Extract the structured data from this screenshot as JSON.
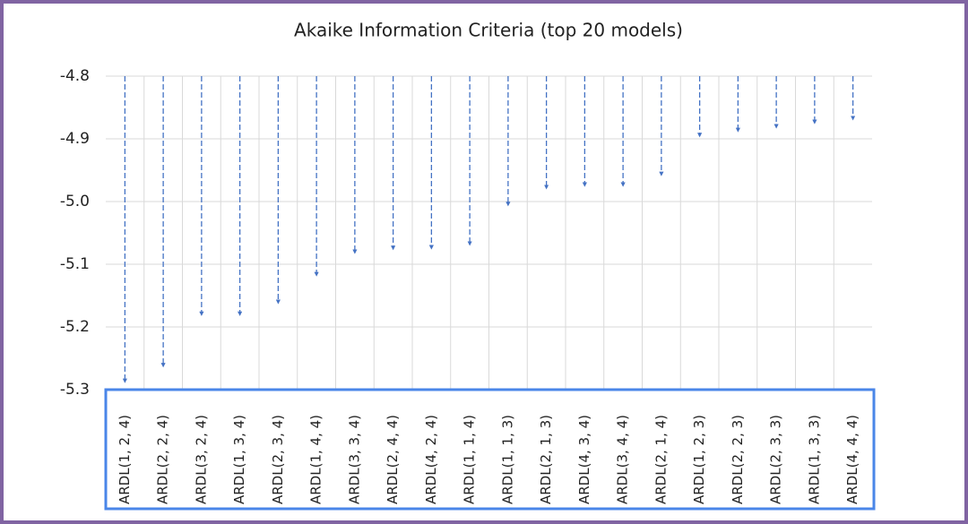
{
  "chart_data": {
    "type": "arrow",
    "title": "Akaike Information Criteria (top 20 models)",
    "categories": [
      "ARDL(1, 2, 4)",
      "ARDL(2, 2, 4)",
      "ARDL(3, 2, 4)",
      "ARDL(1, 3, 4)",
      "ARDL(2, 3, 4)",
      "ARDL(1, 4, 4)",
      "ARDL(3, 3, 4)",
      "ARDL(2, 4, 4)",
      "ARDL(4, 2, 4)",
      "ARDL(1, 1, 4)",
      "ARDL(1, 1, 3)",
      "ARDL(2, 1, 3)",
      "ARDL(4, 3, 4)",
      "ARDL(3, 4, 4)",
      "ARDL(2, 1, 4)",
      "ARDL(1, 2, 3)",
      "ARDL(2, 2, 3)",
      "ARDL(2, 3, 3)",
      "ARDL(1, 3, 3)",
      "ARDL(4, 4, 4)"
    ],
    "values": [
      -5.286,
      -5.261,
      -5.179,
      -5.179,
      -5.16,
      -5.116,
      -5.08,
      -5.074,
      -5.073,
      -5.067,
      -5.004,
      -4.977,
      -4.973,
      -4.973,
      -4.956,
      -4.894,
      -4.886,
      -4.88,
      -4.873,
      -4.867
    ],
    "color": "#4472c4",
    "ylim": [
      -5.3,
      -4.8
    ],
    "yticks": [
      -4.8,
      -4.9,
      {
        "value": -5,
        "label": "-5.0"
      },
      -5.1,
      -5.2,
      -5.3
    ],
    "grid": true
  }
}
